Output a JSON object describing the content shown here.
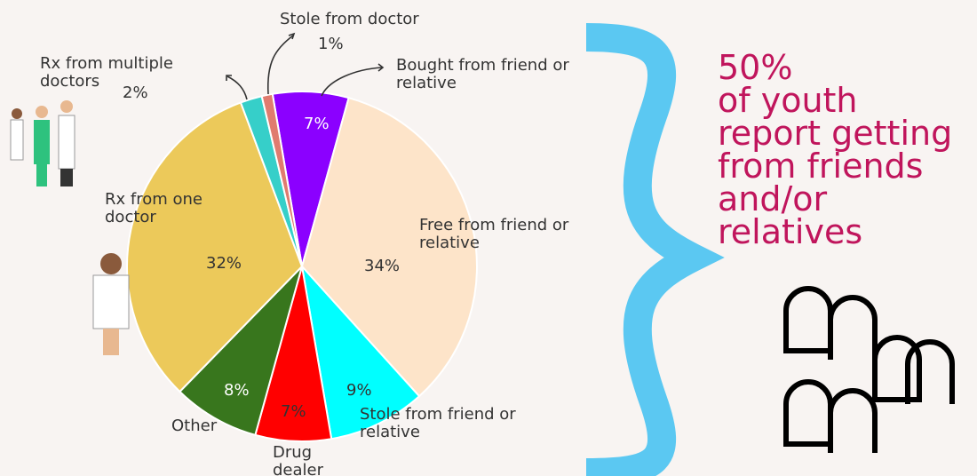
{
  "chart_data": {
    "type": "pie",
    "categories": [
      "Bought from friend or relative",
      "Free from friend or relative",
      "Stole from friend or relative",
      "Drug dealer",
      "Other",
      "Rx from one doctor",
      "Rx from multiple doctors",
      "Stole from doctor"
    ],
    "values": [
      7,
      34,
      9,
      7,
      8,
      32,
      2,
      1
    ],
    "value_labels": [
      "7%",
      "34%",
      "9%",
      "7%",
      "8%",
      "32%",
      "2%",
      "1%"
    ],
    "colors": [
      "#8b00ff",
      "#fde4c9",
      "#00ffff",
      "#ff0000",
      "#38761d",
      "#ecc95a",
      "#36cfc9",
      "#e07b6f"
    ],
    "annotation_lines": [
      "50%",
      "of youth",
      "report getting",
      "from friends",
      "and/or",
      "relatives"
    ]
  }
}
